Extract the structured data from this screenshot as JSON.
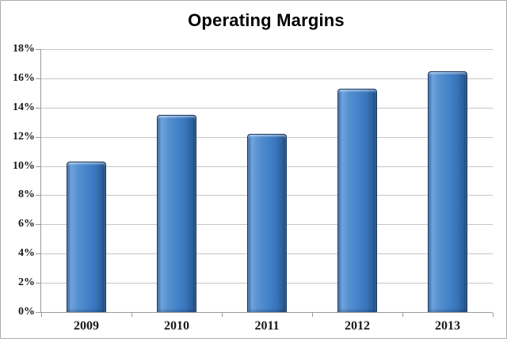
{
  "chart_data": {
    "type": "bar",
    "title": "Operating Margins",
    "categories": [
      "2009",
      "2010",
      "2011",
      "2012",
      "2013"
    ],
    "values": [
      10.3,
      13.5,
      12.2,
      15.3,
      16.5
    ],
    "unit": "%",
    "xlabel": "",
    "ylabel": "",
    "ylim": [
      0,
      18
    ],
    "ytick_step": 2,
    "ytick_labels": [
      "0%",
      "2%",
      "4%",
      "6%",
      "8%",
      "10%",
      "12%",
      "14%",
      "16%",
      "18%"
    ],
    "grid": "horizontal",
    "legend_position": "none",
    "colors": {
      "bar_main": "#4381C8",
      "bar_highlight": "#6FA3DC",
      "bar_shadow": "#1D4677",
      "bar_border": "#17375E",
      "gridline": "#C6C6C6",
      "axis": "#9A9A9A",
      "title": "#000000",
      "background": "#FFFFFF",
      "chart_border": "#ABABAB"
    }
  }
}
